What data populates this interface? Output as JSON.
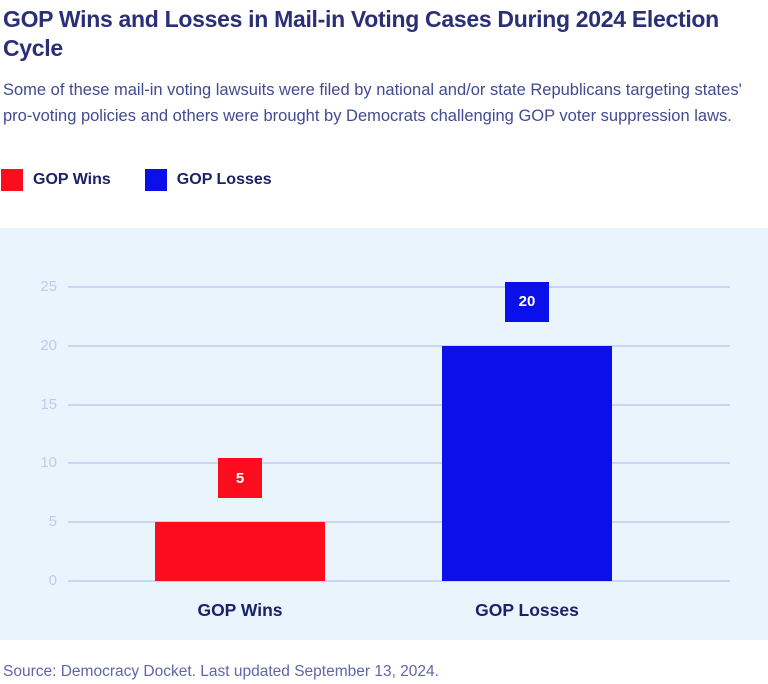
{
  "header": {
    "title": "GOP Wins and Losses in Mail-in Voting Cases During 2024 Election Cycle",
    "subtitle": "Some of these mail-in voting lawsuits were filed by national and/or state Republicans targeting states' pro-voting policies and others were brought by Democrats challenging GOP voter suppression laws."
  },
  "legend": {
    "items": [
      {
        "label": "GOP Wins",
        "color": "#FB0D1E"
      },
      {
        "label": "GOP Losses",
        "color": "#0B10EB"
      }
    ]
  },
  "chart_data": {
    "type": "bar",
    "title": "GOP Wins and Losses in Mail-in Voting Cases During 2024 Election Cycle",
    "categories": [
      "GOP Wins",
      "GOP Losses"
    ],
    "values": [
      5,
      20
    ],
    "data_labels": [
      "5",
      "20"
    ],
    "bar_colors": [
      "#FB0D1E",
      "#0B10EB"
    ],
    "xlabel": "",
    "ylabel": "",
    "ylim": [
      0,
      25
    ],
    "yticks": [
      0,
      5,
      10,
      15,
      20,
      25
    ],
    "grid": true,
    "legend_position": "top-left",
    "panel_background": "#EAF4FC",
    "gridline_color": "#CBD5F3",
    "tick_label_color": "#C0C9F1",
    "data_label_text_color": "#FFFFFF"
  },
  "footer": {
    "source": "Source: Democracy Docket. Last updated September 13, 2024."
  }
}
